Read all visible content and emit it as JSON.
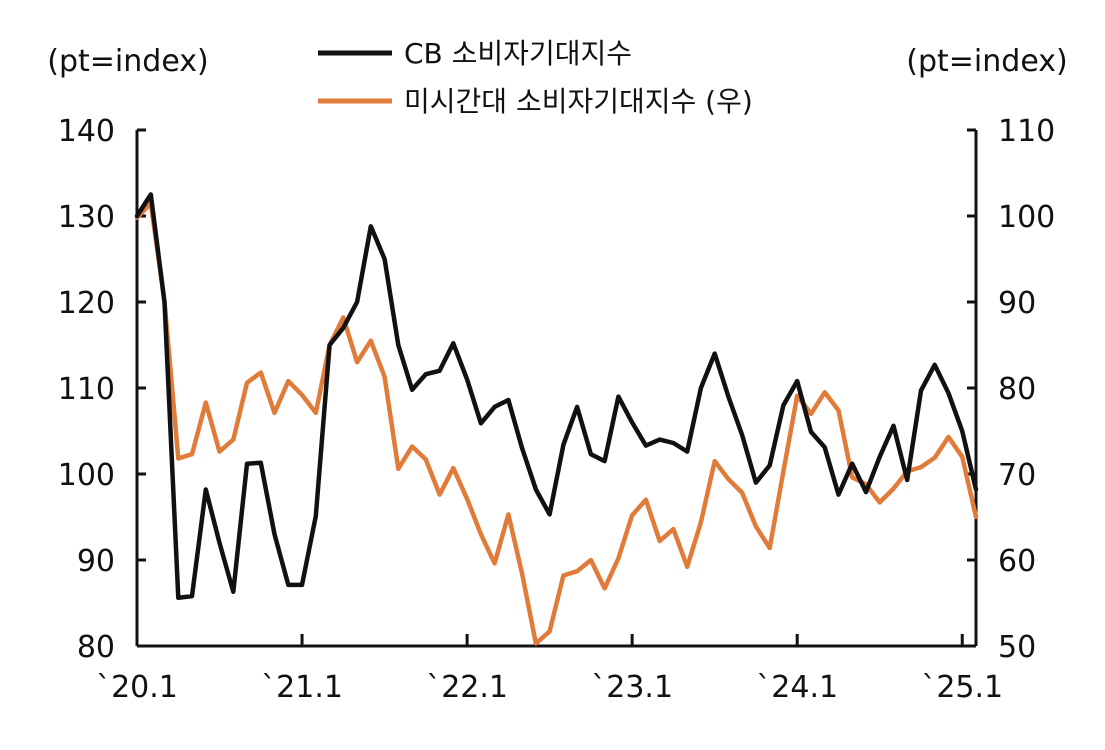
{
  "chart_data": {
    "type": "line",
    "left_unit": "(pt=index)",
    "right_unit": "(pt=index)",
    "x_tick_labels": [
      "`20.1",
      "`21.1",
      "`22.1",
      "`23.1",
      "`24.1",
      "`25.1"
    ],
    "x_tick_months": [
      0,
      12,
      24,
      36,
      48,
      60
    ],
    "x_range": [
      0,
      61
    ],
    "y_left_range": [
      80,
      140
    ],
    "y_left_ticks": [
      80,
      90,
      100,
      110,
      120,
      130,
      140
    ],
    "y_right_range": [
      50,
      110
    ],
    "y_right_ticks": [
      50,
      60,
      70,
      80,
      90,
      100,
      110
    ],
    "grid": false,
    "legend_placement": "top-center",
    "series": [
      {
        "name": "CB 소비자기대지수",
        "axis": "left",
        "color": "#111111",
        "values": [
          130,
          132.5,
          120,
          85.6,
          85.8,
          98.2,
          92,
          86.3,
          101.2,
          101.3,
          93,
          87.1,
          87.1,
          95.1,
          115,
          117,
          120,
          128.8,
          125,
          115,
          109.8,
          111.6,
          112,
          115.2,
          111,
          105.9,
          107.8,
          108.6,
          103,
          98.2,
          95.3,
          103.4,
          107.8,
          102.3,
          101.5,
          109,
          106,
          103.3,
          104,
          103.6,
          102.6,
          110,
          114,
          109,
          104.5,
          99,
          101,
          108,
          110.8,
          104.9,
          103.1,
          97.6,
          101.2,
          97.9,
          102,
          105.6,
          99.3,
          109.7,
          112.7,
          109.4,
          105,
          98.2
        ]
      },
      {
        "name": "미시간대 소비자기대지수 (우)",
        "axis": "right",
        "color": "#E07B39",
        "values": [
          99.8,
          101.5,
          90,
          71.8,
          72.3,
          78.3,
          72.6,
          74,
          80.6,
          81.8,
          77.1,
          80.8,
          79.2,
          77.1,
          85,
          88.2,
          83,
          85.5,
          81.3,
          70.6,
          73.2,
          71.7,
          67.6,
          70.7,
          67.1,
          63,
          59.6,
          65.3,
          58.4,
          50.3,
          51.7,
          58.2,
          58.7,
          60,
          56.7,
          60.2,
          65.2,
          67,
          62.2,
          63.6,
          59.2,
          64.4,
          71.5,
          69.4,
          67.8,
          63.9,
          61.4,
          70.3,
          79.1,
          77,
          79.5,
          77.4,
          69.6,
          68.8,
          66.7,
          68.3,
          70.3,
          70.8,
          71.9,
          74.3,
          72,
          65
        ]
      }
    ]
  }
}
